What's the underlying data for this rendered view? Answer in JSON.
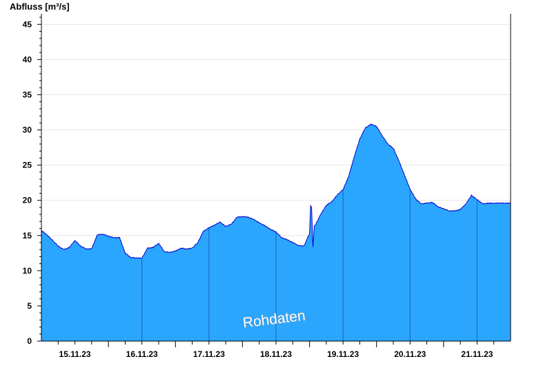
{
  "chart_data": {
    "type": "area",
    "ylabel": "Abfluss [m³/s]",
    "ylim": [
      0,
      46.5
    ],
    "yticks": [
      0,
      5,
      10,
      15,
      20,
      25,
      30,
      35,
      40,
      45
    ],
    "x_range_days": [
      0,
      7
    ],
    "x_tick_labels": [
      "15.11.23",
      "16.11.23",
      "17.11.23",
      "18.11.23",
      "19.11.23",
      "20.11.23",
      "21.11.23"
    ],
    "annotation": "Rohdaten",
    "grid": true,
    "colors": {
      "fill": "#2ba6ff",
      "line": "#0000cc",
      "axis": "#000000",
      "grid": "#e6e6e6"
    },
    "series": [
      {
        "x": [
          "14.11.23 00:00",
          "14.11.23 02:00",
          "14.11.23 04:00",
          "14.11.23 06:00",
          "14.11.23 08:00",
          "14.11.23 10:00",
          "14.11.23 12:00",
          "14.11.23 14:00",
          "14.11.23 16:00",
          "14.11.23 18:00",
          "14.11.23 20:00",
          "14.11.23 22:00",
          "15.11.23 00:00",
          "15.11.23 02:00",
          "15.11.23 04:00",
          "15.11.23 06:00",
          "15.11.23 08:00",
          "15.11.23 10:00",
          "15.11.23 12:00",
          "15.11.23 14:00",
          "15.11.23 16:00",
          "15.11.23 18:00",
          "15.11.23 20:00",
          "15.11.23 22:00",
          "16.11.23 00:00",
          "16.11.23 02:00",
          "16.11.23 04:00",
          "16.11.23 06:00",
          "16.11.23 08:00",
          "16.11.23 10:00",
          "16.11.23 12:00",
          "16.11.23 14:00",
          "16.11.23 16:00",
          "16.11.23 18:00",
          "16.11.23 20:00",
          "16.11.23 22:00",
          "17.11.23 00:00",
          "17.11.23 02:00",
          "17.11.23 04:00",
          "17.11.23 06:00",
          "17.11.23 08:00",
          "17.11.23 10:00",
          "17.11.23 12:00",
          "17.11.23 14:00",
          "17.11.23 16:00",
          "17.11.23 18:00",
          "17.11.23 20:00",
          "17.11.23 22:00",
          "18.11.23 00:00",
          "18.11.23 02:00",
          "18.11.23 04:00",
          "18.11.23 06:00",
          "18.11.23 08:00",
          "18.11.23 10:00",
          "18.11.23 12:00",
          "18.11.23 14:00",
          "18.11.23 16:00",
          "18.11.23 18:00",
          "18.11.23 20:00",
          "18.11.23 22:00",
          "19.11.23 00:00",
          "19.11.23 02:00",
          "19.11.23 04:00",
          "19.11.23 06:00",
          "19.11.23 08:00",
          "19.11.23 10:00",
          "19.11.23 12:00",
          "19.11.23 14:00",
          "19.11.23 16:00",
          "19.11.23 18:00",
          "19.11.23 20:00",
          "19.11.23 22:00",
          "20.11.23 00:00",
          "20.11.23 02:00",
          "20.11.23 04:00",
          "20.11.23 06:00",
          "20.11.23 08:00",
          "20.11.23 10:00",
          "20.11.23 12:00",
          "20.11.23 14:00",
          "20.11.23 16:00",
          "20.11.23 18:00",
          "20.11.23 20:00",
          "20.11.23 22:00",
          "21.11.23 00:00"
        ],
        "values": [
          15.7,
          15.1,
          14.3,
          13.5,
          13.0,
          13.3,
          14.3,
          13.5,
          13.1,
          13.1,
          15.1,
          15.2,
          14.9,
          14.7,
          14.7,
          12.5,
          11.9,
          11.8,
          11.8,
          13.2,
          13.3,
          13.9,
          12.7,
          12.6,
          12.8,
          13.2,
          13.1,
          13.2,
          14.0,
          15.6,
          16.1,
          16.5,
          16.9,
          16.3,
          16.6,
          17.6,
          17.7,
          17.6,
          17.3,
          16.8,
          16.4,
          15.9,
          15.5,
          14.7,
          14.4,
          14.0,
          13.6,
          13.5,
          15.3,
          16.4,
          18.0,
          19.3,
          19.8,
          20.8,
          21.5,
          23.4,
          26.2,
          28.7,
          30.3,
          30.8,
          30.5,
          29.2,
          28.0,
          27.4,
          25.6,
          23.6,
          21.6,
          20.2,
          19.5,
          19.6,
          19.7,
          19.1,
          18.8,
          18.5,
          18.5,
          18.7,
          19.5,
          20.7,
          20.1,
          19.5,
          19.6,
          19.6,
          19.6,
          19.6,
          19.6
        ]
      }
    ],
    "day_separators": [
      "15.11.23 12:00",
      "16.11.23 12:00",
      "17.11.23 12:00",
      "18.11.23 12:00",
      "19.11.23 12:00",
      "20.11.23 12:00"
    ],
    "spike": {
      "x": "18.11.23 00:30",
      "value": 19.3
    }
  }
}
